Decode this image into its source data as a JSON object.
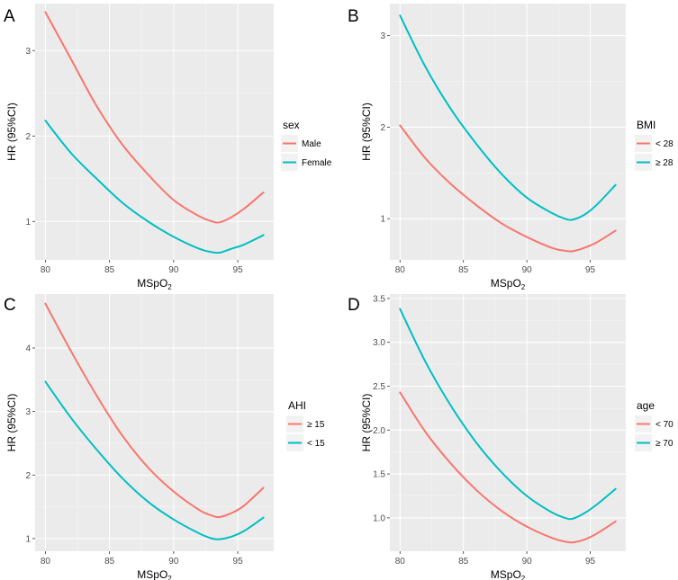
{
  "colors": {
    "series1": "#F8766D",
    "series2": "#00BFC4"
  },
  "chart_data": [
    {
      "panel": "A",
      "type": "line",
      "xlabel": "MSpO2",
      "ylabel": "HR (95%CI)",
      "xlim": [
        79.2,
        97.8
      ],
      "ylim": [
        0.55,
        3.55
      ],
      "xticks": [
        80,
        85,
        90,
        95
      ],
      "yticks": [
        1,
        2,
        3
      ],
      "ytick_labels": [
        "1",
        "2",
        "3"
      ],
      "legend": {
        "title": "sex",
        "position": "right"
      },
      "x": [
        80,
        82,
        84,
        86,
        88,
        90,
        92,
        93,
        93.6,
        94.5,
        95.5,
        97
      ],
      "series": [
        {
          "name": "Male",
          "color_key": "series1",
          "values": [
            3.45,
            2.9,
            2.35,
            1.9,
            1.55,
            1.25,
            1.06,
            1.0,
            0.99,
            1.05,
            1.15,
            1.34
          ]
        },
        {
          "name": "Female",
          "color_key": "series2",
          "values": [
            2.18,
            1.8,
            1.5,
            1.22,
            1.0,
            0.82,
            0.68,
            0.64,
            0.635,
            0.68,
            0.73,
            0.84
          ]
        }
      ]
    },
    {
      "panel": "B",
      "type": "line",
      "xlabel": "MSpO2",
      "ylabel": "HR (95%CI)",
      "xlim": [
        79.2,
        97.8
      ],
      "ylim": [
        0.55,
        3.35
      ],
      "xticks": [
        80,
        85,
        90,
        95
      ],
      "yticks": [
        1,
        2,
        3
      ],
      "ytick_labels": [
        "1",
        "2",
        "3"
      ],
      "legend": {
        "title": "BMI",
        "position": "right"
      },
      "x": [
        80,
        82,
        84,
        86,
        88,
        90,
        92,
        93,
        93.6,
        94.5,
        95.5,
        97
      ],
      "series": [
        {
          "name": "< 28",
          "color_key": "series1",
          "values": [
            2.02,
            1.66,
            1.38,
            1.15,
            0.95,
            0.8,
            0.68,
            0.65,
            0.645,
            0.68,
            0.74,
            0.87
          ]
        },
        {
          "name": "≥ 28",
          "color_key": "series2",
          "values": [
            3.22,
            2.66,
            2.2,
            1.82,
            1.49,
            1.23,
            1.06,
            1.0,
            0.99,
            1.04,
            1.15,
            1.37
          ]
        }
      ]
    },
    {
      "panel": "C",
      "type": "line",
      "xlabel": "MSpO2",
      "ylabel": "HR (95%CI)",
      "xlim": [
        79.2,
        97.8
      ],
      "ylim": [
        0.8,
        4.85
      ],
      "xticks": [
        80,
        85,
        90,
        95
      ],
      "yticks": [
        1,
        2,
        3,
        4
      ],
      "ytick_labels": [
        "1",
        "2",
        "3",
        "4"
      ],
      "legend": {
        "title": "AHI",
        "position": "right"
      },
      "x": [
        80,
        82,
        84,
        86,
        88,
        90,
        92,
        93,
        93.6,
        94.5,
        95.5,
        97
      ],
      "series": [
        {
          "name": "≥ 15",
          "color_key": "series1",
          "values": [
            4.7,
            3.95,
            3.25,
            2.62,
            2.12,
            1.74,
            1.45,
            1.36,
            1.34,
            1.4,
            1.52,
            1.8
          ]
        },
        {
          "name": "< 15",
          "color_key": "series2",
          "values": [
            3.47,
            2.9,
            2.4,
            1.95,
            1.58,
            1.3,
            1.08,
            1.0,
            0.99,
            1.03,
            1.12,
            1.33
          ]
        }
      ]
    },
    {
      "panel": "D",
      "type": "line",
      "xlabel": "MSpO2",
      "ylabel": "HR (95%CI)",
      "xlim": [
        79.2,
        97.8
      ],
      "ylim": [
        0.62,
        3.55
      ],
      "xticks": [
        80,
        85,
        90,
        95
      ],
      "yticks": [
        1.0,
        1.5,
        2.0,
        2.5,
        3.0,
        3.5
      ],
      "ytick_labels": [
        "1.0",
        "1.5",
        "2.0",
        "2.5",
        "3.0",
        "3.5"
      ],
      "legend": {
        "title": "age",
        "position": "right"
      },
      "x": [
        80,
        82,
        84,
        86,
        88,
        90,
        92,
        93,
        93.6,
        94.5,
        95.5,
        97
      ],
      "series": [
        {
          "name": "< 70",
          "color_key": "series1",
          "values": [
            2.43,
            1.98,
            1.62,
            1.32,
            1.08,
            0.9,
            0.77,
            0.73,
            0.72,
            0.75,
            0.82,
            0.96
          ]
        },
        {
          "name": "≥ 70",
          "color_key": "series2",
          "values": [
            3.38,
            2.78,
            2.28,
            1.86,
            1.52,
            1.25,
            1.06,
            1.0,
            0.99,
            1.05,
            1.15,
            1.33
          ]
        }
      ]
    }
  ]
}
